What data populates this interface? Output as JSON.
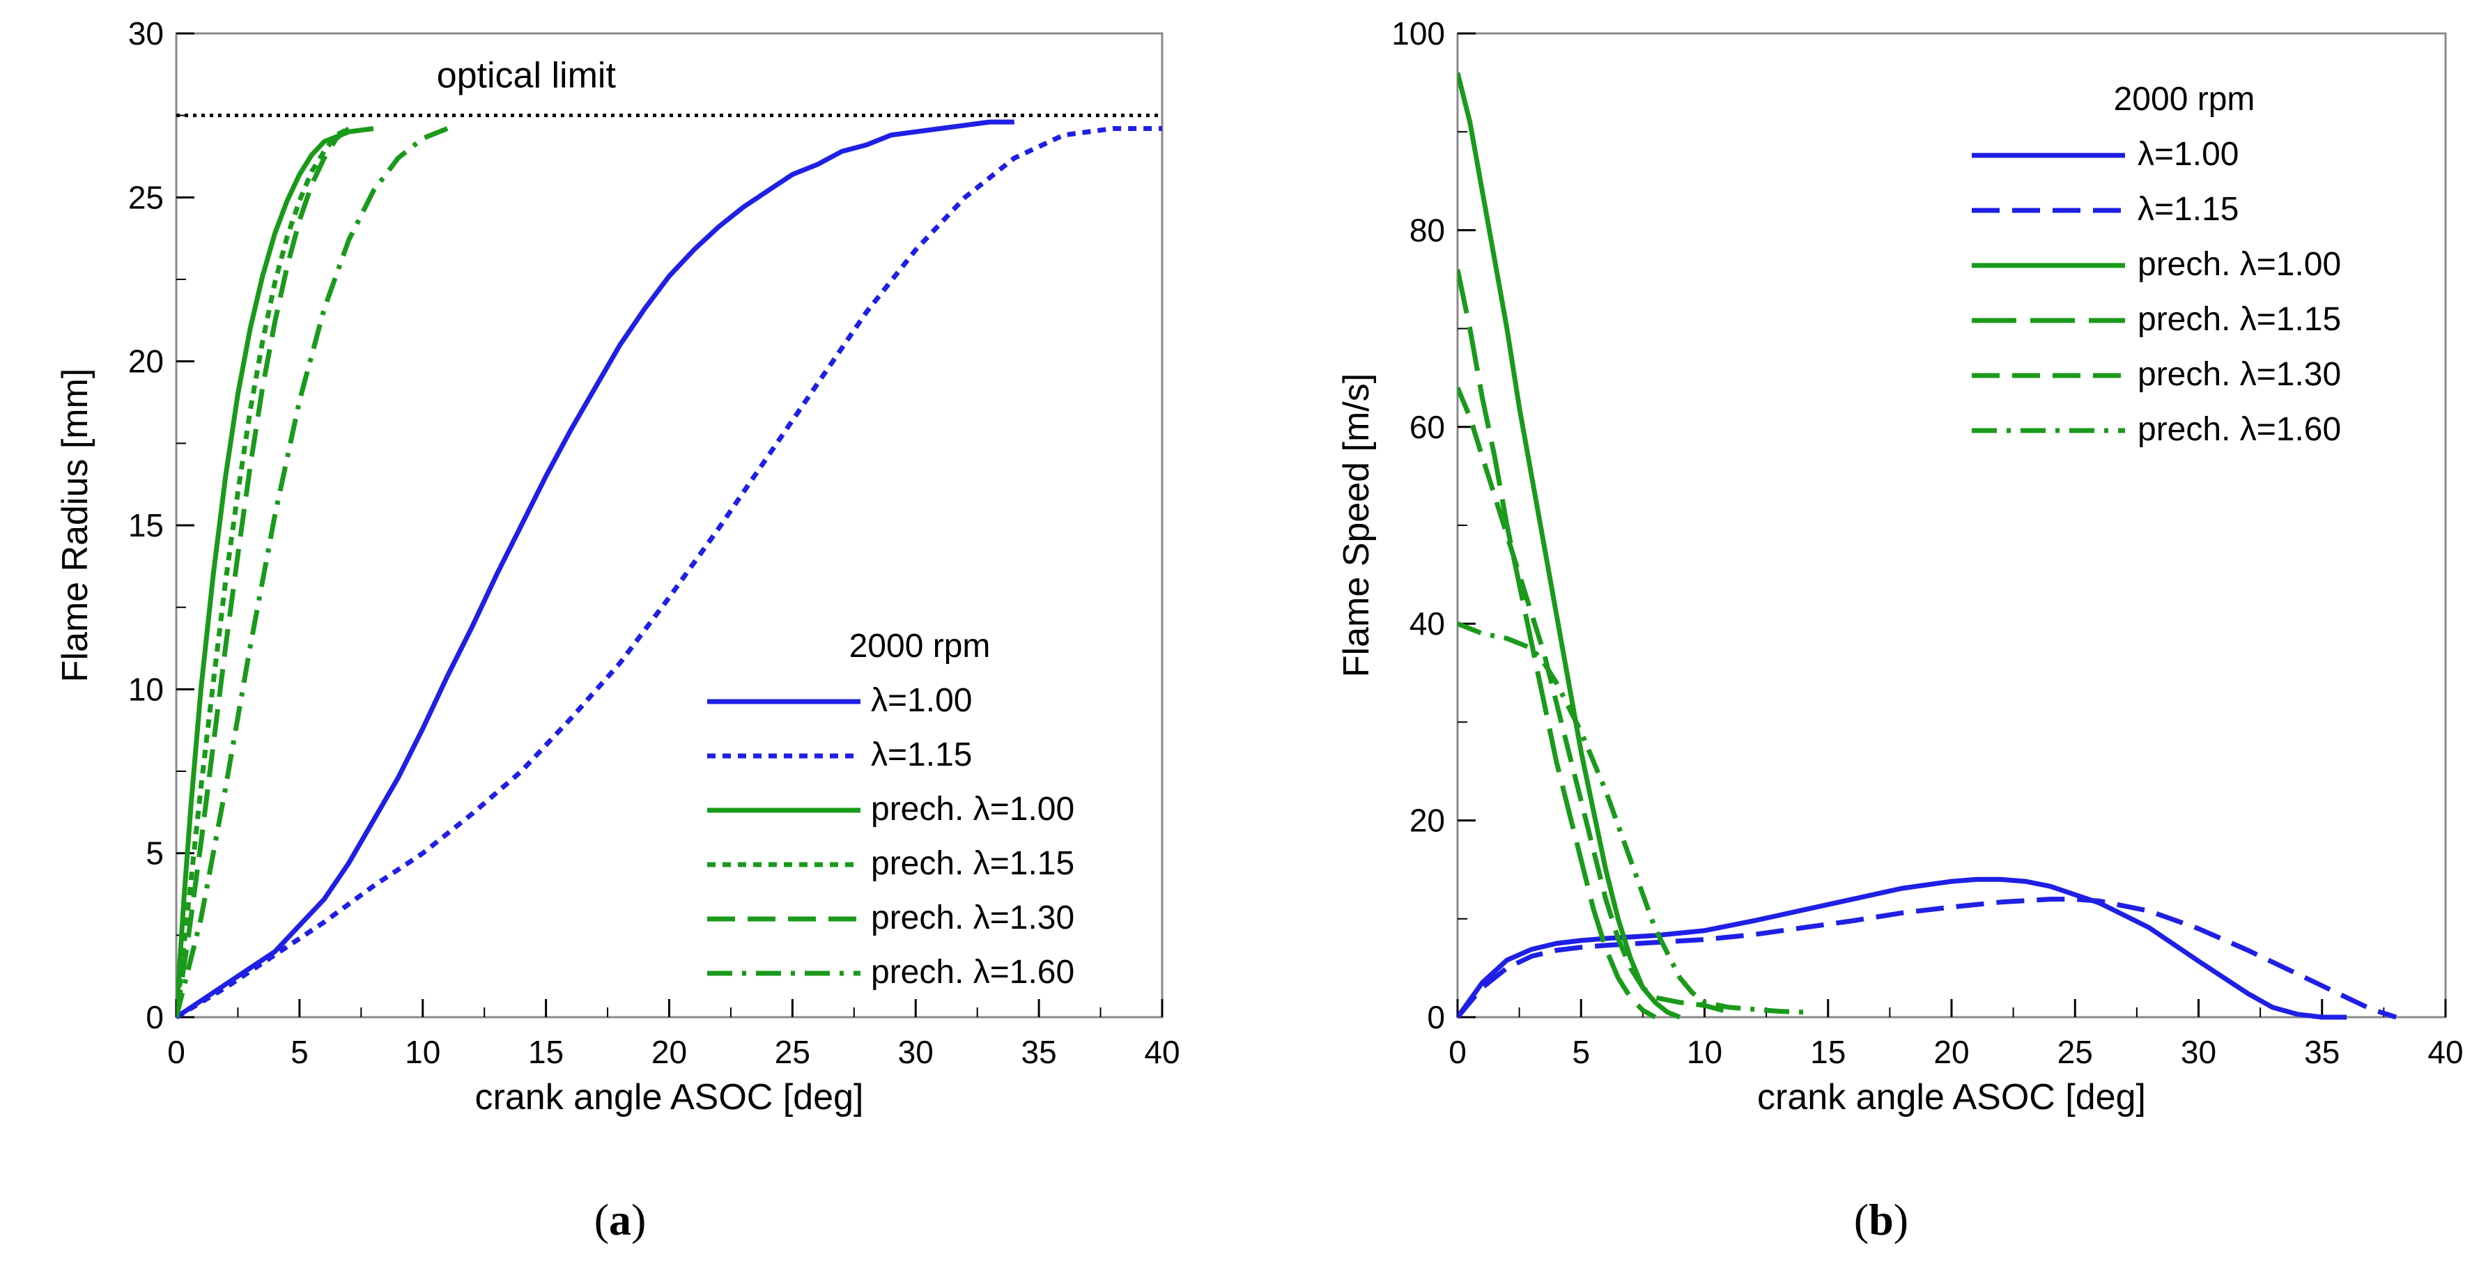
{
  "chart_data": [
    {
      "panel_label": "a",
      "type": "line",
      "title": "",
      "xlabel": "crank angle ASOC [deg]",
      "ylabel": "Flame Radius [mm]",
      "xlim": [
        0,
        40
      ],
      "ylim": [
        0,
        30
      ],
      "xticks": [
        0,
        5,
        10,
        15,
        20,
        25,
        30,
        35,
        40
      ],
      "yticks": [
        0,
        5,
        10,
        15,
        20,
        25,
        30
      ],
      "grid": false,
      "legend_title": "2000 rpm",
      "legend_position": "bottom-right",
      "annotations": [
        {
          "text": "optical limit",
          "y": 27.5,
          "style": "dotted",
          "color": "#000000"
        }
      ],
      "series": [
        {
          "name": "λ=1.00",
          "color": "#1f1fe6",
          "dash": "solid",
          "x": [
            0,
            1,
            2,
            3,
            4,
            5,
            6,
            7,
            8,
            9,
            10,
            11,
            12,
            13,
            14,
            15,
            16,
            17,
            18,
            19,
            20,
            21,
            22,
            23,
            24,
            25,
            26,
            27,
            28,
            29,
            30,
            31,
            32,
            33,
            34
          ],
          "y": [
            0,
            0.5,
            1.0,
            1.5,
            2.0,
            2.8,
            3.6,
            4.7,
            6.0,
            7.3,
            8.8,
            10.4,
            11.9,
            13.5,
            15.0,
            16.5,
            17.9,
            19.2,
            20.5,
            21.6,
            22.6,
            23.4,
            24.1,
            24.7,
            25.2,
            25.7,
            26.0,
            26.4,
            26.6,
            26.9,
            27.0,
            27.1,
            27.2,
            27.3,
            27.3
          ]
        },
        {
          "name": "λ=1.15",
          "color": "#1f1fe6",
          "dash": "dotted",
          "x": [
            0,
            2,
            4,
            6,
            8,
            10,
            12,
            14,
            16,
            18,
            20,
            22,
            24,
            26,
            28,
            30,
            32,
            34,
            36,
            38,
            40
          ],
          "y": [
            0,
            0.9,
            1.9,
            2.9,
            4.0,
            5.0,
            6.2,
            7.5,
            9.1,
            10.8,
            12.8,
            14.9,
            17.1,
            19.3,
            21.5,
            23.4,
            25.0,
            26.2,
            26.9,
            27.1,
            27.1
          ]
        },
        {
          "name": "prech. λ=1.00",
          "color": "#1a9a1a",
          "dash": "solid",
          "x": [
            0,
            0.3,
            0.6,
            1.0,
            1.5,
            2.0,
            2.5,
            3.0,
            3.5,
            4.0,
            4.5,
            5.0,
            5.5,
            6.0,
            7.0,
            8.0
          ],
          "y": [
            0,
            3.5,
            6.5,
            10.0,
            13.5,
            16.5,
            19.0,
            21.0,
            22.6,
            23.9,
            24.9,
            25.7,
            26.3,
            26.7,
            27.0,
            27.1
          ]
        },
        {
          "name": "prech. λ=1.15",
          "color": "#1a9a1a",
          "dash": "dotted",
          "x": [
            0,
            0.5,
            1.0,
            1.5,
            2.0,
            2.5,
            3.0,
            3.5,
            4.0,
            4.5,
            5.0,
            5.5,
            6.0,
            6.5,
            7.0
          ],
          "y": [
            0,
            3.5,
            7.0,
            10.2,
            13.3,
            16.0,
            18.5,
            20.6,
            22.4,
            23.8,
            24.9,
            25.8,
            26.4,
            26.9,
            27.1
          ]
        },
        {
          "name": "prech. λ=1.30",
          "color": "#1a9a1a",
          "dash": "dashed",
          "x": [
            0,
            0.5,
            1.0,
            1.5,
            2.0,
            2.5,
            3.0,
            3.5,
            4.0,
            4.5,
            5.0,
            5.5,
            6.0,
            6.5,
            7.0
          ],
          "y": [
            0,
            2.5,
            5.3,
            8.3,
            11.3,
            14.1,
            16.8,
            19.2,
            21.2,
            22.9,
            24.3,
            25.4,
            26.2,
            26.8,
            27.1
          ]
        },
        {
          "name": "prech. λ=1.60",
          "color": "#1a9a1a",
          "dash": "dashdot",
          "x": [
            0,
            1,
            2,
            3,
            4,
            5,
            6,
            7,
            8,
            9,
            10,
            11
          ],
          "y": [
            0,
            3.0,
            7.0,
            11.3,
            15.3,
            18.8,
            21.6,
            23.7,
            25.2,
            26.2,
            26.8,
            27.1
          ]
        }
      ]
    },
    {
      "panel_label": "b",
      "type": "line",
      "title": "",
      "xlabel": "crank angle ASOC [deg]",
      "ylabel": "Flame Speed [m/s]",
      "xlim": [
        0,
        40
      ],
      "ylim": [
        0,
        100
      ],
      "xticks": [
        0,
        5,
        10,
        15,
        20,
        25,
        30,
        35,
        40
      ],
      "yticks": [
        0,
        20,
        40,
        60,
        80,
        100
      ],
      "grid": false,
      "legend_title": "2000 rpm",
      "legend_position": "top-right",
      "series": [
        {
          "name": "λ=1.00",
          "color": "#1f1fe6",
          "dash": "solid",
          "x": [
            0,
            1,
            2,
            3,
            4,
            5,
            6,
            8,
            10,
            12,
            14,
            16,
            18,
            20,
            21,
            22,
            23,
            24,
            26,
            28,
            30,
            32,
            33,
            34,
            35,
            36
          ],
          "y": [
            0,
            3.5,
            5.8,
            6.9,
            7.5,
            7.8,
            8.0,
            8.3,
            8.8,
            9.8,
            10.9,
            12.0,
            13.1,
            13.8,
            14.0,
            14.0,
            13.8,
            13.3,
            11.6,
            9.1,
            5.7,
            2.4,
            1.0,
            0.3,
            0.0,
            0.0
          ]
        },
        {
          "name": "λ=1.15",
          "color": "#1f1fe6",
          "dash": "dashed",
          "x": [
            0,
            1,
            2,
            3,
            4,
            5,
            6,
            8,
            10,
            12,
            14,
            16,
            18,
            20,
            22,
            24,
            25,
            26,
            28,
            30,
            32,
            34,
            36,
            37,
            38
          ],
          "y": [
            0,
            3.0,
            5.0,
            6.2,
            6.8,
            7.1,
            7.3,
            7.6,
            7.9,
            8.4,
            9.1,
            9.8,
            10.6,
            11.2,
            11.7,
            12.0,
            12.0,
            11.8,
            10.8,
            9.0,
            6.8,
            4.4,
            2.0,
            0.8,
            0.0
          ]
        },
        {
          "name": "prech. λ=1.00",
          "color": "#1a9a1a",
          "dash": "solid",
          "x": [
            0,
            0.5,
            1,
            1.5,
            2,
            2.5,
            3,
            3.5,
            4,
            4.5,
            5,
            5.5,
            6,
            6.5,
            7,
            7.5,
            8,
            8.5,
            9
          ],
          "y": [
            96,
            91,
            84,
            77,
            70,
            62,
            55,
            48,
            41,
            34,
            27,
            21,
            15,
            10,
            6,
            3,
            1.5,
            0.5,
            0
          ]
        },
        {
          "name": "prech. λ=1.15",
          "color": "#1a9a1a",
          "dash": "longdash",
          "x": [
            0,
            0.5,
            1,
            1.5,
            2,
            2.5,
            3,
            3.5,
            4,
            4.5,
            5,
            5.5,
            6,
            6.5,
            7,
            7.5,
            8
          ],
          "y": [
            76,
            70,
            63,
            57,
            50,
            44,
            38,
            32,
            26,
            21,
            16,
            11,
            7,
            4,
            2,
            0.7,
            0
          ]
        },
        {
          "name": "prech. λ=1.30",
          "color": "#1a9a1a",
          "dash": "dashed",
          "x": [
            0,
            0.5,
            1,
            1.5,
            2,
            2.5,
            3,
            3.5,
            4,
            4.5,
            5,
            5.5,
            6,
            6.5,
            7,
            7.5,
            8,
            9,
            10,
            11
          ],
          "y": [
            64,
            61,
            57,
            53,
            49,
            45,
            41,
            37,
            32,
            27,
            22,
            17,
            12,
            8,
            5,
            3,
            2,
            1.5,
            1.2,
            0.5
          ]
        },
        {
          "name": "prech. λ=1.60",
          "color": "#1a9a1a",
          "dash": "dashdot",
          "x": [
            0,
            0.5,
            1,
            2,
            3,
            3.5,
            4,
            5,
            6,
            7,
            8,
            9,
            9.5,
            10,
            11,
            12,
            13,
            14
          ],
          "y": [
            40,
            39.5,
            39,
            38.5,
            37.5,
            36,
            34,
            29,
            23,
            16,
            9,
            4,
            2.5,
            1.5,
            1.0,
            0.8,
            0.6,
            0.5
          ]
        }
      ]
    }
  ]
}
